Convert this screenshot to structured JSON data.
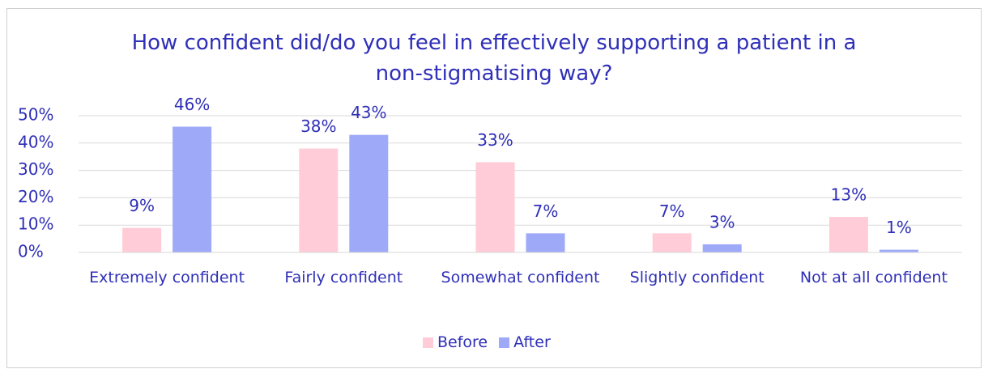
{
  "chart_data": {
    "type": "bar",
    "title": "How confident did/do you feel in effectively supporting a patient in a non-stigmatising way?",
    "categories": [
      "Extremely confident",
      "Fairly confident",
      "Somewhat confident",
      "Slightly confident",
      "Not at all confident"
    ],
    "series": [
      {
        "name": "Before",
        "color": "#ffccd8",
        "values": [
          9,
          38,
          33,
          7,
          13
        ],
        "value_labels": [
          "9%",
          "38%",
          "33%",
          "7%",
          "13%"
        ]
      },
      {
        "name": "After",
        "color": "#9eaaf7",
        "values": [
          46,
          43,
          7,
          3,
          1
        ],
        "value_labels": [
          "46%",
          "43%",
          "7%",
          "3%",
          "1%"
        ]
      }
    ],
    "ylim": [
      0,
      50
    ],
    "yticks": [
      {
        "value": 0,
        "label": "0%"
      },
      {
        "value": 10,
        "label": "10%"
      },
      {
        "value": 20,
        "label": "20%"
      },
      {
        "value": 30,
        "label": "30%"
      },
      {
        "value": 40,
        "label": "40%"
      },
      {
        "value": 50,
        "label": "50%"
      }
    ],
    "grid": true,
    "legend": "bottom"
  }
}
